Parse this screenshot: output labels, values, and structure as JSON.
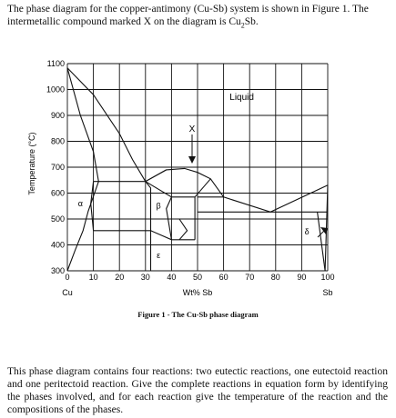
{
  "intro": {
    "line1": "The phase diagram for the copper-antimony (Cu-Sb) system is shown in Figure 1. The",
    "line2_prefix": "intermetallic compound marked X on the diagram is Cu",
    "line2_sub": "2",
    "line2_suffix": "Sb."
  },
  "figure": {
    "caption": "Figure 1 - The Cu-Sb phase diagram",
    "y_axis_label": "Temperature (°C)",
    "x_axis_label": "Wt% Sb",
    "x_left_element": "Cu",
    "x_right_element": "Sb",
    "phase_labels": {
      "liquid": "Liquid",
      "alpha": "α",
      "beta": "β",
      "epsilon": "ε",
      "delta": "δ",
      "compound_marker": "X"
    }
  },
  "chart_data": {
    "type": "phase-diagram",
    "xlabel": "Wt% Sb",
    "ylabel": "Temperature (°C)",
    "xlim": [
      0,
      100
    ],
    "ylim": [
      300,
      1100
    ],
    "x_ticks": [
      0,
      10,
      20,
      30,
      40,
      50,
      60,
      70,
      80,
      90,
      100
    ],
    "y_ticks": [
      300,
      400,
      500,
      600,
      700,
      800,
      900,
      1000,
      1100
    ],
    "grid": true,
    "boundaries": [
      {
        "points": [
          [
            0,
            1083
          ],
          [
            10,
            980
          ],
          [
            20,
            830
          ],
          [
            25,
            730
          ],
          [
            30,
            645
          ]
        ]
      },
      {
        "points": [
          [
            0,
            1083
          ],
          [
            5,
            900
          ],
          [
            10,
            760
          ],
          [
            12,
            645
          ]
        ]
      },
      {
        "points": [
          [
            12,
            645
          ],
          [
            8,
            530
          ],
          [
            6,
            455
          ],
          [
            3,
            380
          ],
          [
            0,
            300
          ]
        ]
      },
      {
        "points": [
          [
            10,
            645
          ],
          [
            30,
            645
          ]
        ]
      },
      {
        "points": [
          [
            10,
            645
          ],
          [
            9,
            560
          ],
          [
            10,
            455
          ]
        ]
      },
      {
        "points": [
          [
            10,
            455
          ],
          [
            32,
            455
          ]
        ]
      },
      {
        "points": [
          [
            30,
            645
          ],
          [
            32,
            620
          ],
          [
            32,
            455
          ]
        ]
      },
      {
        "points": [
          [
            32,
            455
          ],
          [
            32,
            300
          ]
        ]
      },
      {
        "points": [
          [
            30,
            645
          ],
          [
            38,
            690
          ],
          [
            45,
            695
          ],
          [
            50,
            680
          ],
          [
            55,
            655
          ],
          [
            60,
            585
          ],
          [
            78,
            527
          ],
          [
            100,
            631
          ]
        ]
      },
      {
        "points": [
          [
            38,
            690
          ],
          [
            30,
            645
          ]
        ]
      },
      {
        "points": [
          [
            30,
            645
          ],
          [
            40,
            585
          ],
          [
            49,
            585
          ]
        ]
      },
      {
        "points": [
          [
            32,
            455
          ],
          [
            40,
            420
          ],
          [
            49,
            420
          ]
        ]
      },
      {
        "points": [
          [
            40,
            585
          ],
          [
            38,
            540
          ],
          [
            40,
            420
          ]
        ]
      },
      {
        "points": [
          [
            49,
            420
          ],
          [
            49,
            585
          ]
        ]
      },
      {
        "points": [
          [
            49,
            585
          ],
          [
            55,
            655
          ]
        ]
      },
      {
        "points": [
          [
            50,
            585
          ],
          [
            60,
            585
          ]
        ]
      },
      {
        "points": [
          [
            50,
            527
          ],
          [
            100,
            527
          ]
        ]
      },
      {
        "points": [
          [
            43,
            420
          ],
          [
            46,
            455
          ],
          [
            43,
            500
          ]
        ]
      },
      {
        "points": [
          [
            96,
            527
          ],
          [
            99,
            300
          ]
        ]
      },
      {
        "points": [
          [
            100,
            631
          ],
          [
            99,
            300
          ]
        ]
      }
    ],
    "annotations": [
      {
        "label": "Liquid",
        "x": 67,
        "y": 960
      },
      {
        "label": "α",
        "x": 5,
        "y": 550
      },
      {
        "label": "β",
        "x": 35,
        "y": 540
      },
      {
        "label": "ε",
        "x": 35,
        "y": 350
      },
      {
        "label": "δ",
        "x": 92,
        "y": 440
      },
      {
        "label": "X",
        "x": 46,
        "y": 870
      }
    ]
  },
  "body": {
    "paragraph": "This phase diagram contains four reactions: two eutectic reactions, one eutectoid reaction and one peritectoid reaction. Give the complete reactions in equation form by identifying the phases involved, and for each reaction give the temperature of the reaction and the compositions of the phases."
  }
}
